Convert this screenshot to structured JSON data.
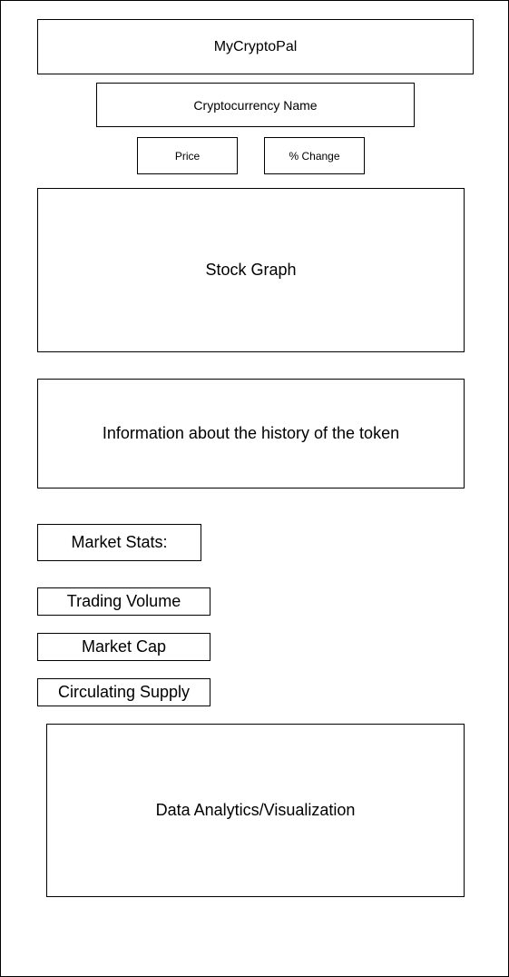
{
  "app": {
    "title": "MyCryptoPal"
  },
  "header": {
    "coin_name": "Cryptocurrency Name",
    "price_label": "Price",
    "change_label": "% Change"
  },
  "main": {
    "stock_graph_label": "Stock Graph",
    "history_label": "Information about the history of the token"
  },
  "market_stats": {
    "heading": "Market Stats:",
    "items": [
      {
        "label": "Trading Volume"
      },
      {
        "label": "Market Cap"
      },
      {
        "label": "Circulating Supply"
      }
    ]
  },
  "analytics": {
    "label": "Data Analytics/Visualization"
  }
}
